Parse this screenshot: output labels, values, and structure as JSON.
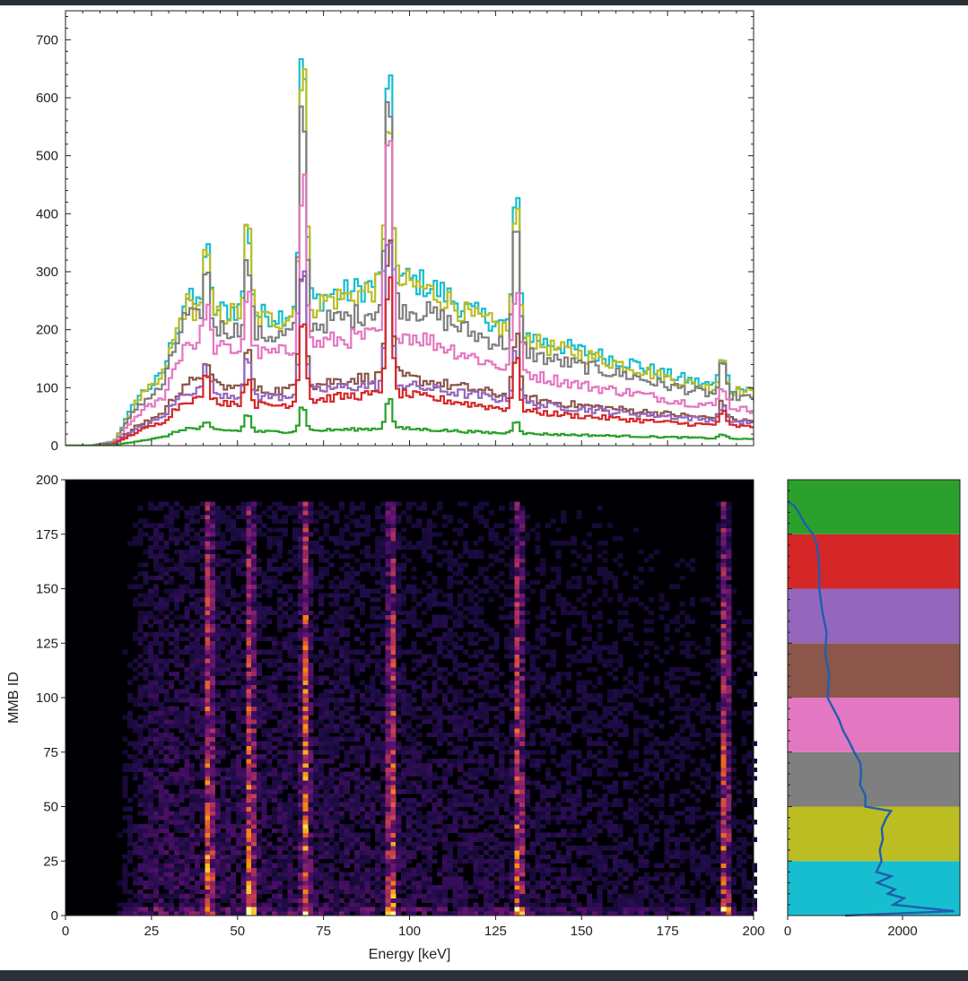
{
  "chart_data": [
    {
      "type": "line",
      "drawstyle": "steps",
      "x_range": [
        0,
        200
      ],
      "y_range": [
        0,
        750
      ],
      "yticks": [
        "0",
        "100",
        "200",
        "300",
        "400",
        "500",
        "600",
        "700"
      ],
      "x_ticks_labels_shown": false,
      "peaks_keV": [
        41,
        53,
        69,
        94,
        131,
        191
      ],
      "series": [
        {
          "color": "#17becf",
          "base": [
            0,
            0,
            8,
            85,
            120,
            255,
            230,
            235,
            225,
            225,
            240,
            260,
            265,
            280,
            290,
            280,
            260,
            230,
            215,
            200,
            180,
            170,
            160,
            150,
            140,
            125,
            115,
            105,
            100,
            95
          ],
          "peaks": [
            110,
            160,
            460,
            350,
            230,
            60
          ]
        },
        {
          "color": "#bcbd22",
          "base": [
            0,
            0,
            7,
            80,
            115,
            245,
            222,
            228,
            218,
            218,
            232,
            252,
            258,
            272,
            282,
            272,
            252,
            222,
            208,
            192,
            173,
            163,
            154,
            144,
            134,
            120,
            110,
            100,
            96,
            90
          ],
          "peaks": [
            108,
            158,
            470,
            340,
            220,
            60
          ]
        },
        {
          "color": "#7f7f7f",
          "base": [
            0,
            0,
            6,
            70,
            100,
            225,
            205,
            200,
            190,
            190,
            200,
            215,
            222,
            235,
            240,
            232,
            215,
            195,
            180,
            168,
            152,
            143,
            135,
            126,
            118,
            106,
            98,
            90,
            86,
            80
          ],
          "peaks": [
            95,
            130,
            420,
            380,
            210,
            50
          ]
        },
        {
          "color": "#e377c2",
          "base": [
            0,
            0,
            5,
            55,
            80,
            180,
            170,
            165,
            158,
            160,
            170,
            180,
            185,
            190,
            195,
            185,
            170,
            155,
            140,
            130,
            118,
            110,
            102,
            96,
            90,
            82,
            75,
            70,
            66,
            60
          ],
          "peaks": [
            75,
            105,
            320,
            360,
            150,
            40
          ]
        },
        {
          "color": "#8c564b",
          "base": [
            0,
            0,
            4,
            35,
            55,
            110,
            105,
            100,
            95,
            95,
            100,
            110,
            115,
            118,
            120,
            112,
            105,
            98,
            90,
            84,
            78,
            72,
            68,
            64,
            60,
            56,
            52,
            48,
            45,
            42
          ],
          "peaks": [
            50,
            70,
            250,
            240,
            110,
            30
          ]
        },
        {
          "color": "#9467bd",
          "base": [
            0,
            0,
            4,
            30,
            48,
            95,
            92,
            88,
            85,
            85,
            90,
            98,
            102,
            104,
            106,
            100,
            94,
            88,
            82,
            76,
            70,
            66,
            62,
            58,
            55,
            52,
            48,
            45,
            42,
            40
          ],
          "peaks": [
            45,
            60,
            220,
            260,
            100,
            28
          ]
        },
        {
          "color": "#d62728",
          "base": [
            0,
            0,
            3,
            25,
            40,
            80,
            78,
            74,
            70,
            70,
            75,
            82,
            86,
            88,
            90,
            84,
            78,
            72,
            66,
            62,
            57,
            53,
            50,
            47,
            44,
            41,
            38,
            36,
            34,
            32
          ],
          "peaks": [
            40,
            50,
            170,
            210,
            90,
            25
          ]
        },
        {
          "color": "#2ca02c",
          "base": [
            0,
            0,
            1,
            8,
            14,
            30,
            28,
            26,
            24,
            24,
            25,
            27,
            28,
            29,
            30,
            28,
            26,
            24,
            22,
            21,
            20,
            19,
            18,
            17,
            16,
            15,
            14,
            13,
            12,
            11
          ],
          "peaks": [
            10,
            30,
            45,
            55,
            25,
            8
          ]
        }
      ]
    },
    {
      "type": "heatmap",
      "colormap": "inferno",
      "xlabel": "Energy [keV]",
      "ylabel": "MMB ID",
      "x_range": [
        0,
        200
      ],
      "y_range": [
        0,
        200
      ],
      "xticks": [
        "0",
        "25",
        "50",
        "75",
        "100",
        "125",
        "150",
        "175",
        "200"
      ],
      "yticks": [
        "0",
        "25",
        "50",
        "75",
        "100",
        "125",
        "150",
        "175",
        "200"
      ],
      "lines_keV": [
        41,
        53,
        69,
        94,
        131,
        191
      ],
      "max_id": 190
    },
    {
      "type": "line",
      "orientation": "horizontal",
      "x_range": [
        0,
        3000
      ],
      "y_range": [
        0,
        200
      ],
      "xticks": [
        "0",
        "2000"
      ],
      "band_colors": [
        "#17becf",
        "#bcbd22",
        "#7f7f7f",
        "#e377c2",
        "#8c564b",
        "#9467bd",
        "#d62728",
        "#2ca02c"
      ],
      "band_edges": [
        0,
        25,
        50,
        75,
        100,
        125,
        150,
        175,
        200
      ],
      "profile_y": [
        0,
        2,
        5,
        8,
        10,
        12,
        15,
        18,
        20,
        25,
        30,
        35,
        40,
        45,
        48,
        50,
        55,
        60,
        65,
        70,
        75,
        80,
        85,
        90,
        95,
        100,
        110,
        120,
        130,
        140,
        150,
        160,
        170,
        175,
        180,
        185,
        188,
        190
      ],
      "profile_x": [
        1000,
        2900,
        1900,
        2000,
        1700,
        1800,
        1600,
        1750,
        1600,
        1650,
        1550,
        1600,
        1650,
        1700,
        1750,
        1400,
        1350,
        1300,
        1320,
        1250,
        1200,
        1100,
        1000,
        900,
        800,
        720,
        700,
        680,
        650,
        620,
        560,
        540,
        520,
        440,
        300,
        200,
        120,
        0
      ]
    }
  ]
}
